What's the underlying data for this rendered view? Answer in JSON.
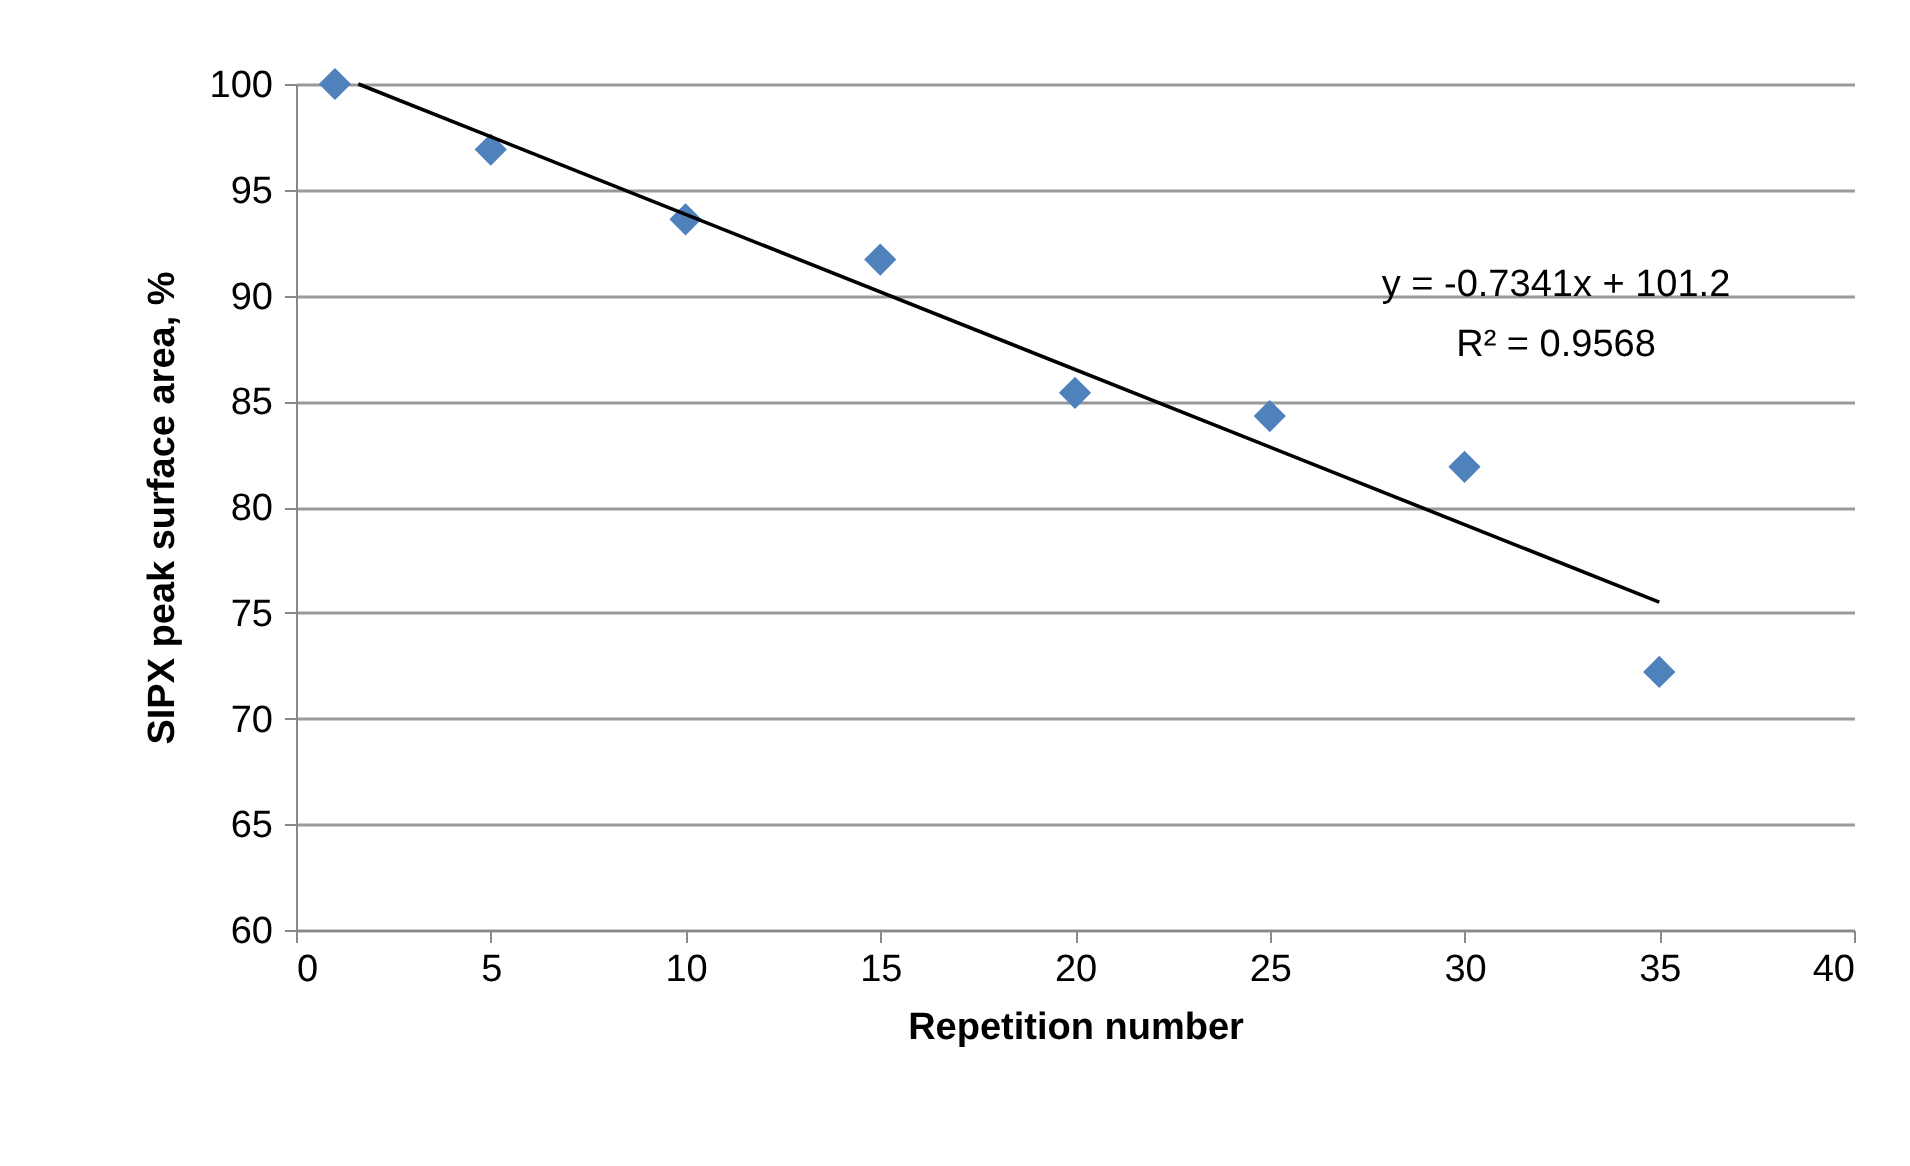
{
  "chart_data": {
    "type": "scatter",
    "xlabel": "Repetition number",
    "ylabel": "SIPX peak surface area, %",
    "x": [
      1,
      5,
      10,
      15,
      20,
      25,
      30,
      35
    ],
    "series": [
      {
        "color": "#4f81bd",
        "marker": "diamond",
        "values": [
          100,
          96.9,
          93.6,
          91.7,
          85.4,
          84.3,
          81.9,
          72.2
        ]
      },
      {
        "type": "line",
        "color": "#000000",
        "marker": "none",
        "x": [
          1.6,
          35
        ],
        "values": [
          100,
          75.5
        ]
      }
    ],
    "annotations": [
      "y = -0.7341x + 101.2",
      "R² = 0.9568"
    ],
    "xlim": [
      0,
      40
    ],
    "xticks": [
      0,
      5,
      10,
      15,
      20,
      25,
      30,
      35,
      40
    ],
    "ylim": [
      60,
      100
    ],
    "yticks": [
      60,
      65,
      70,
      75,
      80,
      85,
      90,
      95,
      100
    ],
    "grid": "y"
  }
}
